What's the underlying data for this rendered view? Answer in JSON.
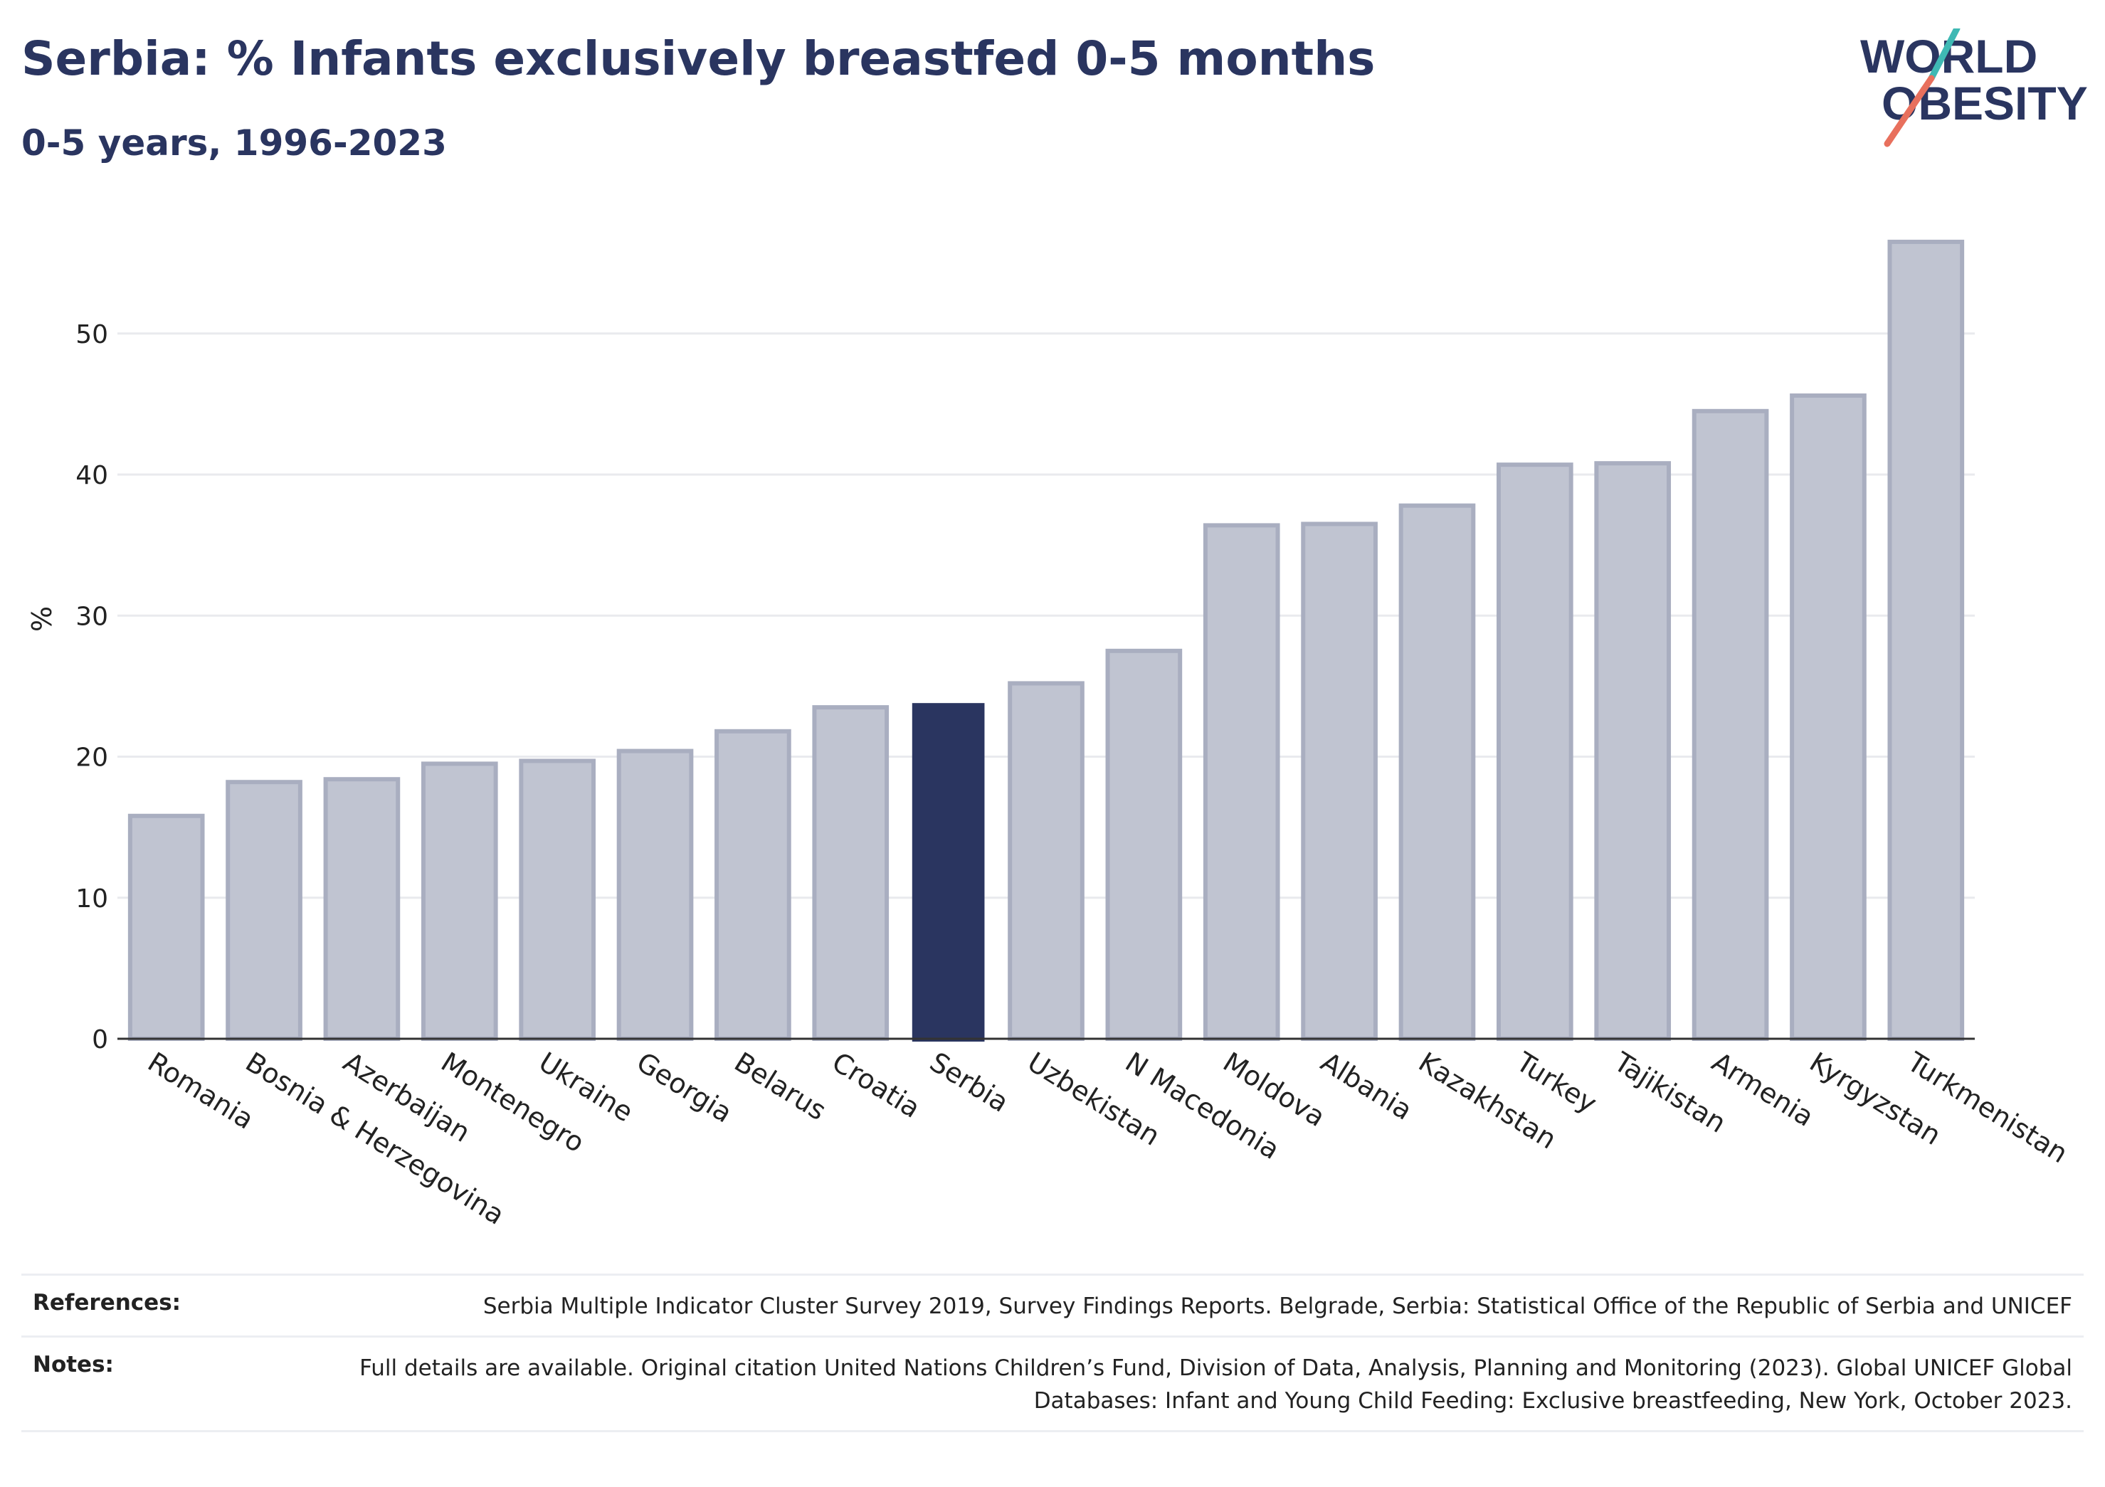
{
  "header": {
    "title": "Serbia: % Infants exclusively breastfed 0-5 months",
    "subtitle": "0-5 years, 1996-2023"
  },
  "logo": {
    "line1": "WORLD",
    "line2": "OBESITY",
    "text_color": "#2a3560",
    "slash_colors": [
      "#3fb9b4",
      "#e8705d"
    ]
  },
  "chart_data": {
    "type": "bar",
    "ylabel": "%",
    "xlabel": "",
    "ylim": [
      0,
      57
    ],
    "yticks": [
      0,
      10,
      20,
      30,
      40,
      50
    ],
    "grid": true,
    "highlight": "Serbia",
    "colors": {
      "default": "#c0c4d1",
      "default_edge": "#a9aec0",
      "highlight": "#2a3560"
    },
    "categories": [
      "Romania",
      "Bosnia & Herzegovina",
      "Azerbaijan",
      "Montenegro",
      "Ukraine",
      "Georgia",
      "Belarus",
      "Croatia",
      "Serbia",
      "Uzbekistan",
      "N Macedonia",
      "Moldova",
      "Albania",
      "Kazakhstan",
      "Turkey",
      "Tajikistan",
      "Armenia",
      "Kyrgyzstan",
      "Turkmenistan"
    ],
    "values": [
      15.8,
      18.2,
      18.4,
      19.5,
      19.7,
      20.4,
      21.8,
      23.5,
      23.8,
      25.2,
      27.5,
      36.4,
      36.5,
      37.8,
      40.7,
      40.8,
      44.5,
      45.6,
      56.5
    ]
  },
  "references": {
    "label": "References:",
    "text": "Serbia Multiple Indicator Cluster Survey 2019, Survey Findings Reports. Belgrade, Serbia: Statistical Office of the Republic of Serbia and UNICEF"
  },
  "notes": {
    "label": "Notes:",
    "text": "Full details are available. Original citation United Nations Children’s Fund, Division of Data, Analysis, Planning and Monitoring (2023). Global UNICEF Global Databases: Infant and Young Child Feeding: Exclusive breastfeeding, New York, October 2023."
  }
}
